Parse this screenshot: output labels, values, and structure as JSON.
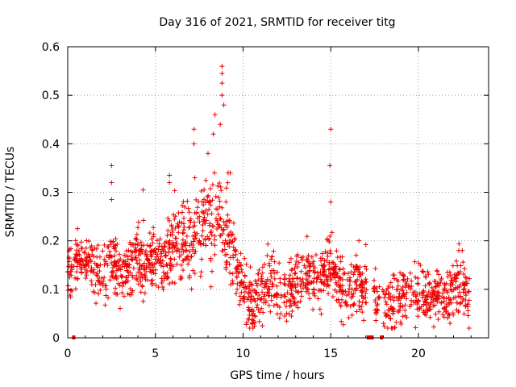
{
  "chart_data": {
    "type": "scatter",
    "title": "Day 316 of 2021, SRMTID for receiver titg",
    "xlabel": "GPS time / hours",
    "ylabel": "SRMTID / TECUs",
    "xlim": [
      0,
      24
    ],
    "ylim": [
      0,
      0.6
    ],
    "x_ticks": [
      "0",
      "5",
      "10",
      "15",
      "20"
    ],
    "x_tick_values": [
      0,
      5,
      10,
      15,
      20
    ],
    "y_ticks": [
      "0",
      "0.1",
      "0.2",
      "0.3",
      "0.4",
      "0.5",
      "0.6"
    ],
    "y_tick_values": [
      0,
      0.1,
      0.2,
      0.3,
      0.4,
      0.5,
      0.6
    ],
    "grid": true,
    "marker": "plus",
    "color": "#ee0000",
    "series": [
      {
        "name": "SRMTID",
        "profile": [
          {
            "x": 0.0,
            "y": 0.14
          },
          {
            "x": 0.5,
            "y": 0.15
          },
          {
            "x": 1.0,
            "y": 0.16
          },
          {
            "x": 1.5,
            "y": 0.14
          },
          {
            "x": 2.0,
            "y": 0.13
          },
          {
            "x": 2.5,
            "y": 0.17
          },
          {
            "x": 3.0,
            "y": 0.12
          },
          {
            "x": 3.5,
            "y": 0.15
          },
          {
            "x": 4.0,
            "y": 0.16
          },
          {
            "x": 4.5,
            "y": 0.15
          },
          {
            "x": 5.0,
            "y": 0.17
          },
          {
            "x": 5.5,
            "y": 0.16
          },
          {
            "x": 6.0,
            "y": 0.19
          },
          {
            "x": 6.5,
            "y": 0.2
          },
          {
            "x": 7.0,
            "y": 0.2
          },
          {
            "x": 7.5,
            "y": 0.22
          },
          {
            "x": 8.0,
            "y": 0.24
          },
          {
            "x": 8.5,
            "y": 0.25
          },
          {
            "x": 9.0,
            "y": 0.23
          },
          {
            "x": 9.4,
            "y": 0.19
          },
          {
            "x": 9.8,
            "y": 0.12
          },
          {
            "x": 10.2,
            "y": 0.08
          },
          {
            "x": 10.6,
            "y": 0.07
          },
          {
            "x": 11.0,
            "y": 0.1
          },
          {
            "x": 11.5,
            "y": 0.11
          },
          {
            "x": 12.0,
            "y": 0.1
          },
          {
            "x": 12.5,
            "y": 0.09
          },
          {
            "x": 13.0,
            "y": 0.12
          },
          {
            "x": 13.5,
            "y": 0.13
          },
          {
            "x": 14.0,
            "y": 0.12
          },
          {
            "x": 14.5,
            "y": 0.13
          },
          {
            "x": 15.0,
            "y": 0.15
          },
          {
            "x": 15.5,
            "y": 0.11
          },
          {
            "x": 16.0,
            "y": 0.09
          },
          {
            "x": 16.5,
            "y": 0.12
          },
          {
            "x": 17.0,
            "y": 0.1
          },
          {
            "x": 17.5,
            "y": 0.09
          },
          {
            "x": 18.0,
            "y": 0.06
          },
          {
            "x": 18.5,
            "y": 0.07
          },
          {
            "x": 19.0,
            "y": 0.08
          },
          {
            "x": 19.5,
            "y": 0.1
          },
          {
            "x": 20.0,
            "y": 0.1
          },
          {
            "x": 20.5,
            "y": 0.09
          },
          {
            "x": 21.0,
            "y": 0.09
          },
          {
            "x": 21.5,
            "y": 0.08
          },
          {
            "x": 22.0,
            "y": 0.1
          },
          {
            "x": 22.5,
            "y": 0.11
          },
          {
            "x": 22.9,
            "y": 0.08
          }
        ],
        "spread": 0.03,
        "x_start": 0.0,
        "x_end": 22.9,
        "n_points": 1700,
        "highlights": [
          {
            "x": 2.5,
            "y": 0.355
          },
          {
            "x": 2.5,
            "y": 0.32
          },
          {
            "x": 2.5,
            "y": 0.285
          },
          {
            "x": 4.3,
            "y": 0.305
          },
          {
            "x": 5.8,
            "y": 0.335
          },
          {
            "x": 5.8,
            "y": 0.32
          },
          {
            "x": 7.2,
            "y": 0.43
          },
          {
            "x": 7.2,
            "y": 0.4
          },
          {
            "x": 7.25,
            "y": 0.33
          },
          {
            "x": 8.0,
            "y": 0.38
          },
          {
            "x": 8.3,
            "y": 0.42
          },
          {
            "x": 8.4,
            "y": 0.46
          },
          {
            "x": 8.7,
            "y": 0.44
          },
          {
            "x": 8.8,
            "y": 0.56
          },
          {
            "x": 8.8,
            "y": 0.545
          },
          {
            "x": 8.8,
            "y": 0.525
          },
          {
            "x": 8.8,
            "y": 0.5
          },
          {
            "x": 8.9,
            "y": 0.48
          },
          {
            "x": 15.0,
            "y": 0.43
          },
          {
            "x": 14.95,
            "y": 0.355
          },
          {
            "x": 15.0,
            "y": 0.28
          },
          {
            "x": 16.6,
            "y": 0.2
          },
          {
            "x": 22.3,
            "y": 0.18
          },
          {
            "x": 22.5,
            "y": 0.18
          },
          {
            "x": 10.5,
            "y": 0.03
          },
          {
            "x": 11.1,
            "y": 0.025
          },
          {
            "x": 21.8,
            "y": 0.03
          }
        ]
      }
    ],
    "data_gaps": [
      {
        "x_start": 0.25,
        "x_end": 0.35
      },
      {
        "x_start": 17.05,
        "x_end": 17.45
      },
      {
        "x_start": 17.8,
        "x_end": 17.95
      }
    ]
  }
}
